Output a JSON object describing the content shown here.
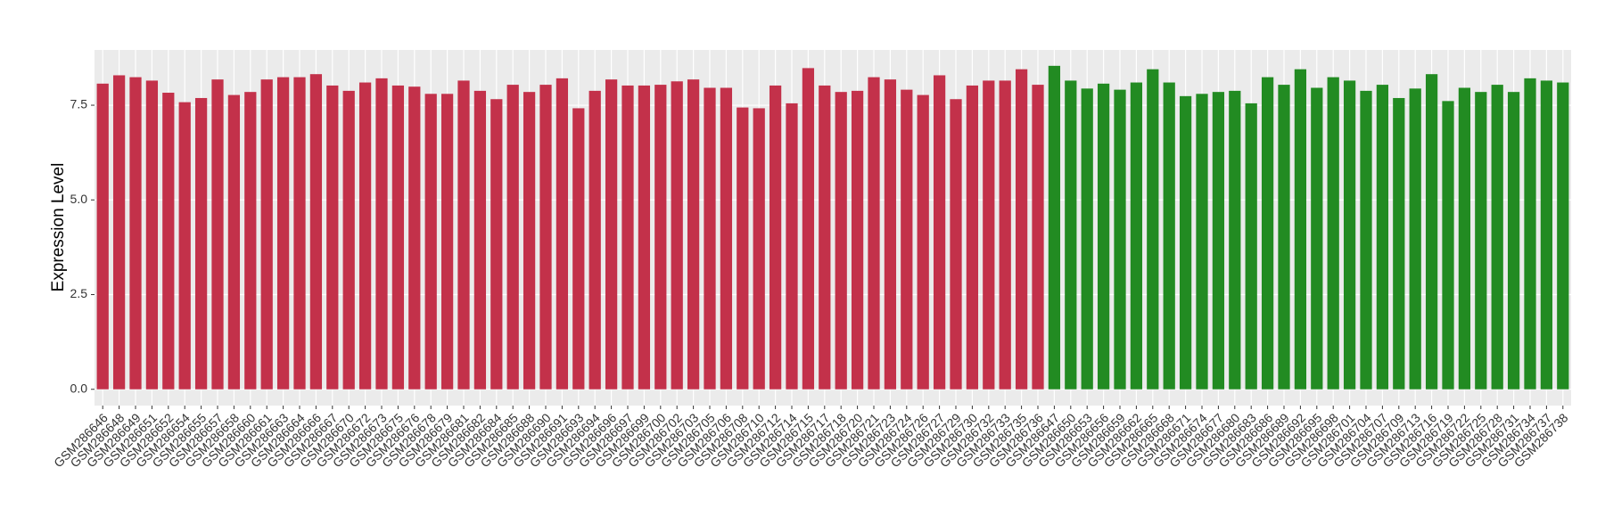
{
  "chart_data": {
    "type": "bar",
    "y_label": "Expression Level",
    "categories": [
      "GSM286646",
      "GSM286648",
      "GSM286649",
      "GSM286651",
      "GSM286652",
      "GSM286654",
      "GSM286655",
      "GSM286657",
      "GSM286658",
      "GSM286660",
      "GSM286661",
      "GSM286663",
      "GSM286664",
      "GSM286666",
      "GSM286667",
      "GSM286670",
      "GSM286672",
      "GSM286673",
      "GSM286675",
      "GSM286676",
      "GSM286678",
      "GSM286679",
      "GSM286681",
      "GSM286682",
      "GSM286684",
      "GSM286685",
      "GSM286688",
      "GSM286690",
      "GSM286691",
      "GSM286693",
      "GSM286694",
      "GSM286696",
      "GSM286697",
      "GSM286699",
      "GSM286700",
      "GSM286702",
      "GSM286703",
      "GSM286705",
      "GSM286706",
      "GSM286708",
      "GSM286710",
      "GSM286712",
      "GSM286714",
      "GSM286715",
      "GSM286717",
      "GSM286718",
      "GSM286720",
      "GSM286721",
      "GSM286723",
      "GSM286724",
      "GSM286726",
      "GSM286727",
      "GSM286729",
      "GSM286730",
      "GSM286732",
      "GSM286733",
      "GSM286735",
      "GSM286736",
      "GSM286647",
      "GSM286650",
      "GSM286653",
      "GSM286656",
      "GSM286659",
      "GSM286662",
      "GSM286665",
      "GSM286668",
      "GSM286671",
      "GSM286674",
      "GSM286677",
      "GSM286680",
      "GSM286683",
      "GSM286686",
      "GSM286689",
      "GSM286692",
      "GSM286695",
      "GSM286698",
      "GSM286701",
      "GSM286704",
      "GSM286707",
      "GSM286709",
      "GSM286713",
      "GSM286716",
      "GSM286719",
      "GSM286722",
      "GSM286725",
      "GSM286728",
      "GSM286731",
      "GSM286734",
      "GSM286737",
      "GSM286738"
    ],
    "values": [
      8.07,
      8.29,
      8.24,
      8.15,
      7.83,
      7.58,
      7.69,
      8.18,
      7.77,
      7.85,
      8.18,
      8.24,
      8.24,
      8.32,
      8.02,
      7.88,
      8.1,
      8.21,
      8.02,
      7.99,
      7.8,
      7.8,
      8.15,
      7.88,
      7.66,
      8.04,
      7.85,
      8.04,
      8.21,
      7.42,
      7.88,
      8.18,
      8.02,
      8.02,
      8.04,
      8.13,
      8.18,
      7.96,
      7.96,
      7.44,
      7.42,
      8.02,
      7.55,
      8.48,
      8.02,
      7.85,
      7.88,
      8.24,
      8.18,
      7.91,
      7.77,
      8.29,
      7.66,
      8.02,
      8.15,
      8.15,
      8.45,
      8.04,
      8.54,
      8.15,
      7.94,
      8.07,
      7.91,
      8.1,
      8.45,
      8.1,
      7.74,
      7.8,
      7.85,
      7.88,
      7.55,
      8.24,
      8.04,
      8.45,
      7.96,
      8.24,
      8.15,
      7.88,
      8.04,
      7.69,
      7.94,
      8.32,
      7.61,
      7.96,
      7.85,
      8.04,
      7.85,
      8.21,
      8.15,
      8.1
    ],
    "colors": [
      "#c3314a",
      "#c3314a",
      "#c3314a",
      "#c3314a",
      "#c3314a",
      "#c3314a",
      "#c3314a",
      "#c3314a",
      "#c3314a",
      "#c3314a",
      "#c3314a",
      "#c3314a",
      "#c3314a",
      "#c3314a",
      "#c3314a",
      "#c3314a",
      "#c3314a",
      "#c3314a",
      "#c3314a",
      "#c3314a",
      "#c3314a",
      "#c3314a",
      "#c3314a",
      "#c3314a",
      "#c3314a",
      "#c3314a",
      "#c3314a",
      "#c3314a",
      "#c3314a",
      "#c3314a",
      "#c3314a",
      "#c3314a",
      "#c3314a",
      "#c3314a",
      "#c3314a",
      "#c3314a",
      "#c3314a",
      "#c3314a",
      "#c3314a",
      "#c3314a",
      "#c3314a",
      "#c3314a",
      "#c3314a",
      "#c3314a",
      "#c3314a",
      "#c3314a",
      "#c3314a",
      "#c3314a",
      "#c3314a",
      "#c3314a",
      "#c3314a",
      "#c3314a",
      "#c3314a",
      "#c3314a",
      "#c3314a",
      "#c3314a",
      "#c3314a",
      "#c3314a",
      "#228b22",
      "#228b22",
      "#228b22",
      "#228b22",
      "#228b22",
      "#228b22",
      "#228b22",
      "#228b22",
      "#228b22",
      "#228b22",
      "#228b22",
      "#228b22",
      "#228b22",
      "#228b22",
      "#228b22",
      "#228b22",
      "#228b22",
      "#228b22",
      "#228b22",
      "#228b22",
      "#228b22",
      "#228b22",
      "#228b22",
      "#228b22",
      "#228b22",
      "#228b22",
      "#228b22",
      "#228b22",
      "#228b22",
      "#228b22",
      "#228b22",
      "#228b22"
    ],
    "ylim": [
      -0.43,
      8.96
    ],
    "yticks": [
      {
        "value": 0,
        "label": "0.0"
      },
      2.5,
      {
        "value": 5,
        "label": "5.0"
      },
      7.5
    ],
    "grid": true
  }
}
